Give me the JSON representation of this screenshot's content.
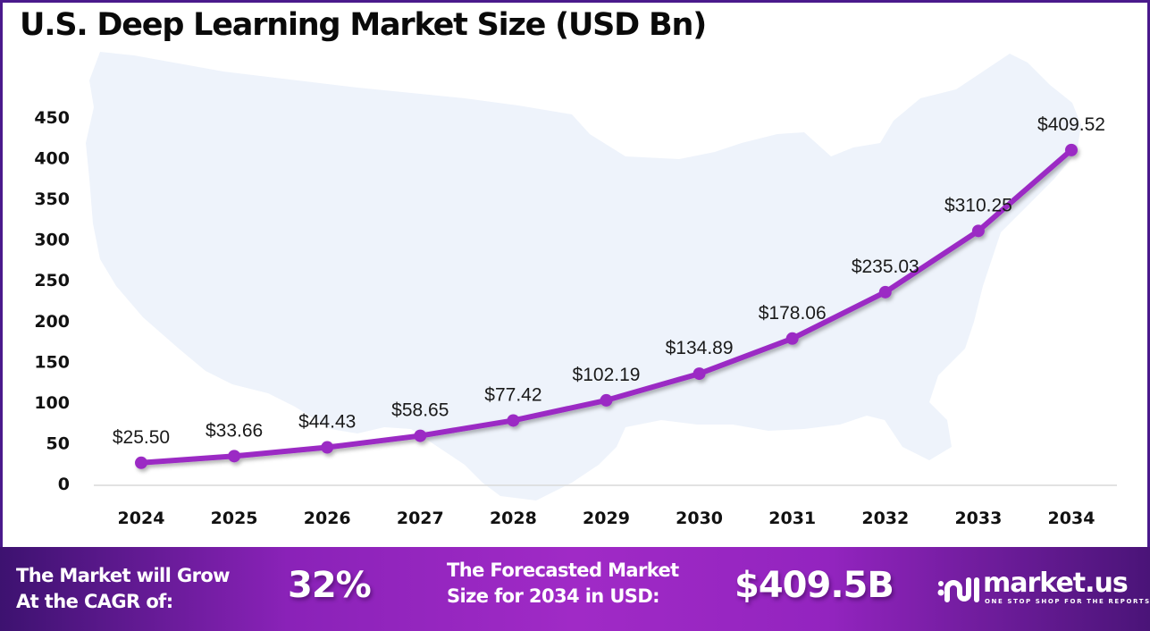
{
  "title": "U.S. Deep Learning Market Size (USD Bn)",
  "chart_data": {
    "type": "line",
    "title": "U.S. Deep Learning Market Size (USD Bn)",
    "xlabel": "",
    "ylabel": "",
    "categories": [
      "2024",
      "2025",
      "2026",
      "2027",
      "2028",
      "2029",
      "2030",
      "2031",
      "2032",
      "2033",
      "2034"
    ],
    "values": [
      25.5,
      33.66,
      44.43,
      58.65,
      77.42,
      102.19,
      134.89,
      178.06,
      235.03,
      310.25,
      409.52
    ],
    "data_labels": [
      "$25.50",
      "$33.66",
      "$44.43",
      "$58.65",
      "$77.42",
      "$102.19",
      "$134.89",
      "$178.06",
      "$235.03",
      "$310.25",
      "$409.52"
    ],
    "yticks": [
      0,
      50,
      100,
      150,
      200,
      250,
      300,
      350,
      400,
      450
    ],
    "ylim": [
      0,
      450
    ],
    "grid": false,
    "legend": "none",
    "line_color": "#9b2bc4"
  },
  "footer": {
    "cagr_label_line1": "The Market will Grow",
    "cagr_label_line2": "At the CAGR of:",
    "cagr_value": "32%",
    "forecast_label_line1": "The Forecasted Market",
    "forecast_label_line2": "Size for 2034 in USD:",
    "forecast_value": "$409.5B",
    "logo_name": "market.us",
    "logo_tagline": "ONE STOP SHOP FOR THE REPORTS"
  },
  "colors": {
    "frame": "#4a1a8c",
    "line": "#9b2bc4",
    "map": "#eef3fb",
    "footer_start": "#3d1270",
    "footer_mid": "#a02ac6"
  }
}
